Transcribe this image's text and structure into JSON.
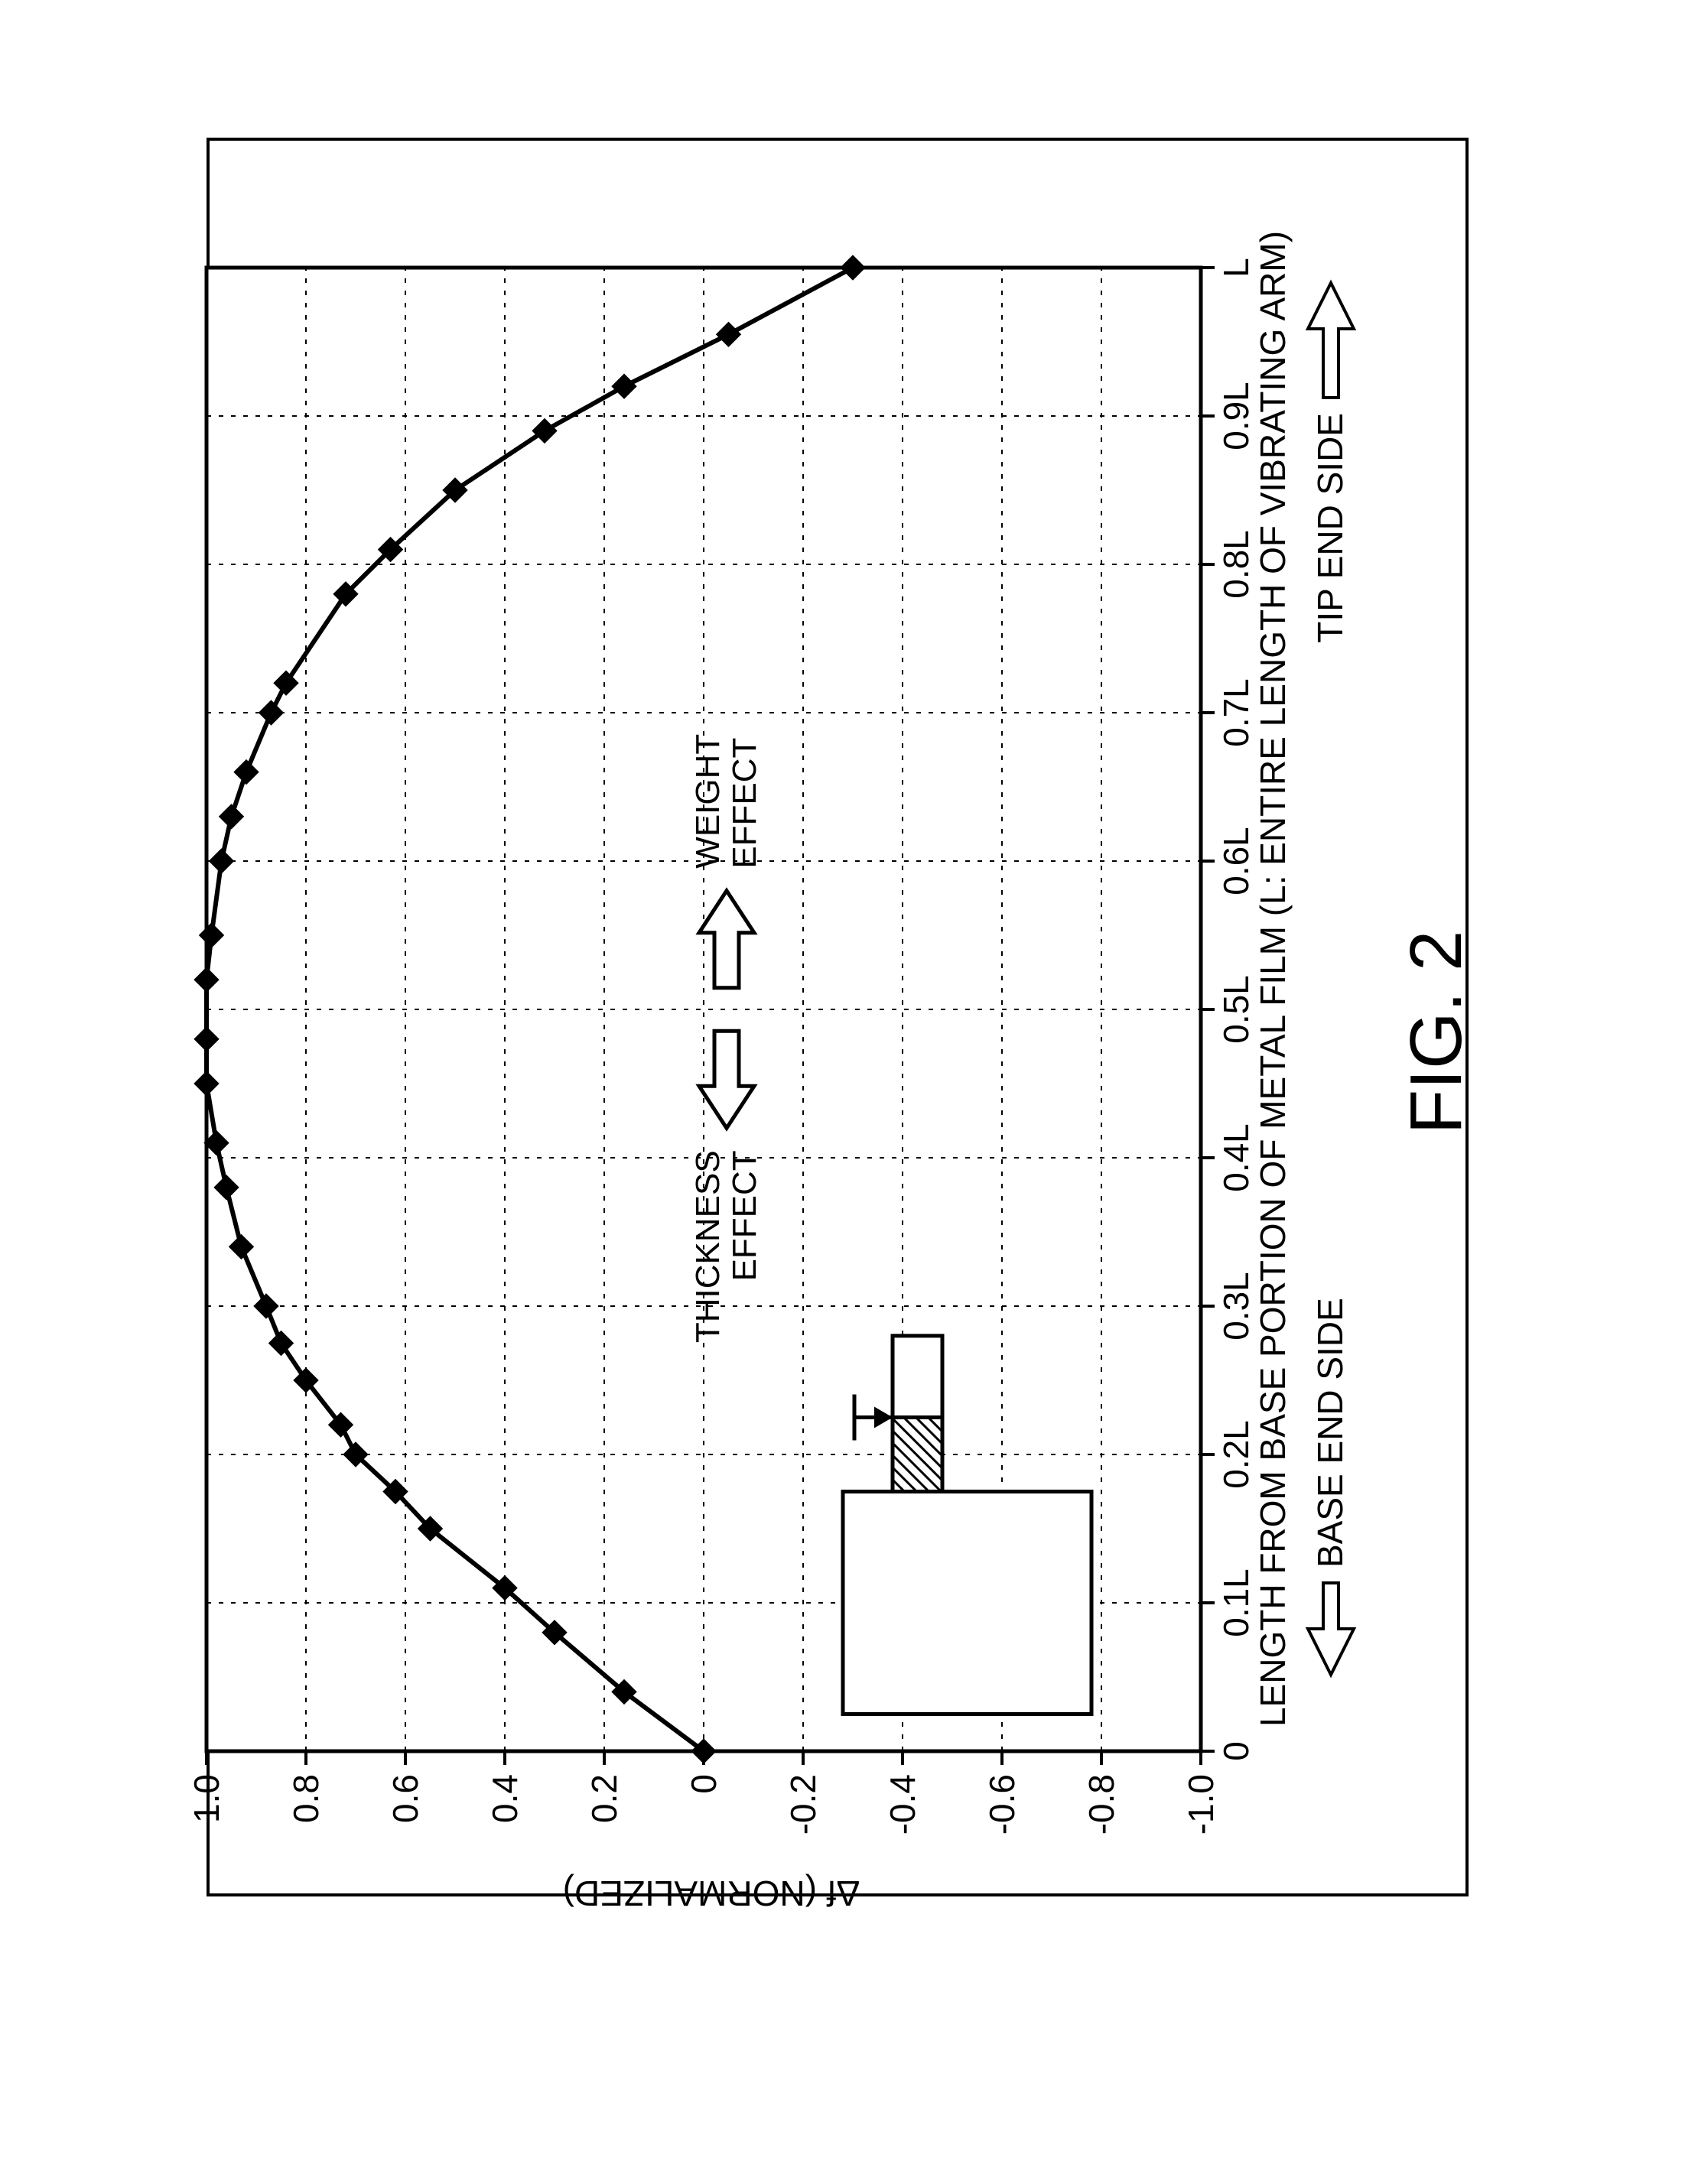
{
  "figure_label": "FIG. 2",
  "chart": {
    "type": "line",
    "x_label_line1": "LENGTH FROM BASE PORTION OF METAL FILM (L: ENTIRE LENGTH OF VIBRATING ARM)",
    "x_sub_left": "BASE END SIDE",
    "x_sub_right": "TIP END SIDE",
    "y_label": "Δf  (NORMALIZED)",
    "x_ticks": [
      "0",
      "0.1L",
      "0.2L",
      "0.3L",
      "0.4L",
      "0.5L",
      "0.6L",
      "0.7L",
      "0.8L",
      "0.9L",
      "L"
    ],
    "y_ticks": [
      "-1.0",
      "-0.8",
      "-0.6",
      "-0.4",
      "-0.2",
      "0",
      "0.2",
      "0.4",
      "0.6",
      "0.8",
      "1.0"
    ],
    "xlim": [
      0,
      1
    ],
    "ylim": [
      -1,
      1
    ],
    "series": {
      "x": [
        0,
        0.04,
        0.08,
        0.11,
        0.15,
        0.175,
        0.2,
        0.22,
        0.25,
        0.275,
        0.3,
        0.34,
        0.38,
        0.41,
        0.45,
        0.48,
        0.52,
        0.55,
        0.6,
        0.63,
        0.66,
        0.7,
        0.72,
        0.78,
        0.81,
        0.85,
        0.89,
        0.92,
        0.955,
        1.0
      ],
      "y": [
        0,
        0.16,
        0.3,
        0.4,
        0.55,
        0.62,
        0.7,
        0.73,
        0.8,
        0.85,
        0.88,
        0.93,
        0.96,
        0.98,
        1.0,
        1.0,
        1.0,
        0.99,
        0.97,
        0.95,
        0.92,
        0.87,
        0.84,
        0.72,
        0.63,
        0.5,
        0.32,
        0.16,
        -0.05,
        -0.3
      ]
    },
    "line_color": "#000000",
    "line_width": 6,
    "marker": "diamond",
    "marker_size": 16,
    "marker_fill": "#000000",
    "background_color": "#ffffff",
    "grid_color": "#000000",
    "axis_tick_fontsize": 46,
    "axis_label_fontsize": 46,
    "axis_tick_font_weight": "400",
    "annotations": {
      "thickness_label": "THICKNESS\nEFFECT",
      "weight_label": "WEIGHT\nEFFECT",
      "annotation_fontsize": 44
    },
    "inset_diagram": {
      "base_rect": true,
      "arm_rect": true,
      "arm_hatch": true,
      "arrow_marker": true
    }
  }
}
